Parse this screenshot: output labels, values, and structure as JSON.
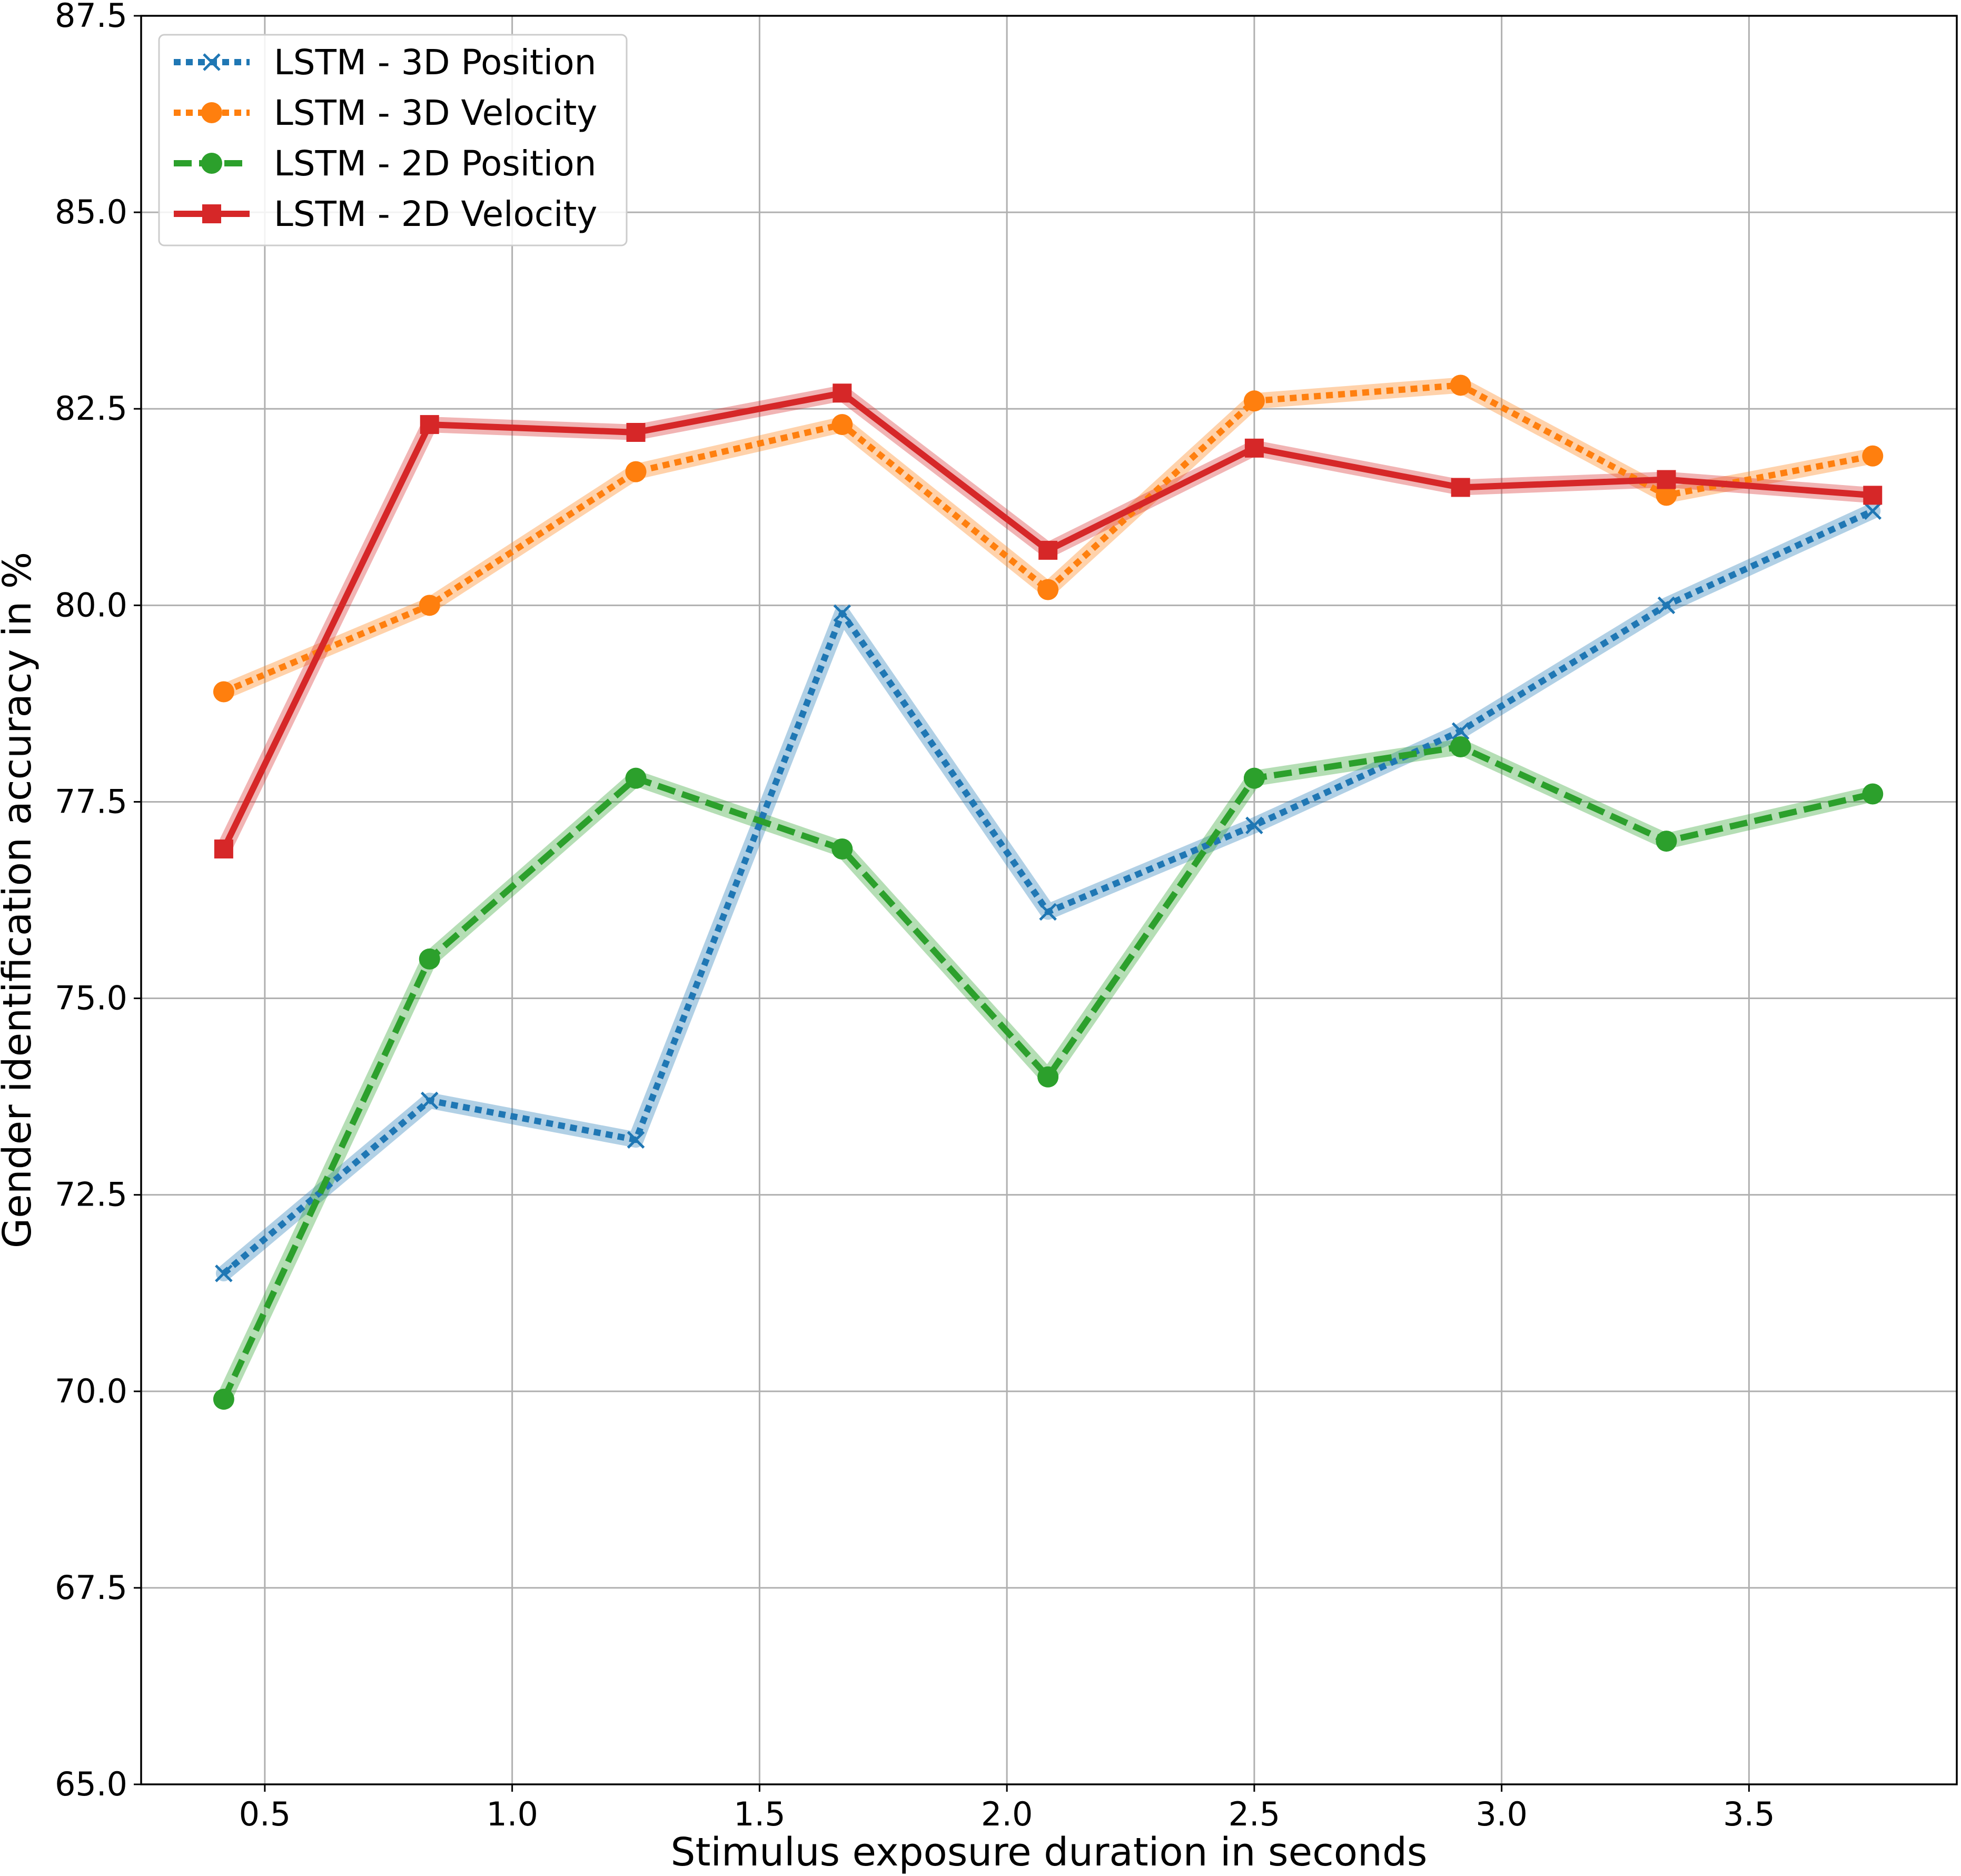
{
  "chart_data": {
    "type": "line",
    "title": "",
    "xlabel": "Stimulus exposure duration in seconds",
    "ylabel": "Gender identification accuracy in %",
    "xlim": [
      0.25,
      3.92
    ],
    "ylim": [
      65.0,
      87.5
    ],
    "xticks": [
      "0.5",
      "1.0",
      "1.5",
      "2.0",
      "2.5",
      "3.0",
      "3.5"
    ],
    "yticks": [
      "65.0",
      "67.5",
      "70.0",
      "72.5",
      "75.0",
      "77.5",
      "80.0",
      "82.5",
      "85.0",
      "87.5"
    ],
    "grid": true,
    "legend_position": "top-left",
    "x": [
      0.417,
      0.833,
      1.25,
      1.667,
      2.083,
      2.5,
      2.917,
      3.333,
      3.75
    ],
    "series": [
      {
        "name": "LSTM - 3D Position",
        "color": "#1f77b4",
        "linestyle": "dotted",
        "marker": "x",
        "values": [
          71.5,
          73.7,
          73.2,
          79.9,
          76.1,
          77.2,
          78.4,
          80.0,
          81.2
        ]
      },
      {
        "name": "LSTM - 3D Velocity",
        "color": "#ff7f0e",
        "linestyle": "dotted",
        "marker": "circle",
        "values": [
          78.9,
          80.0,
          81.7,
          82.3,
          80.2,
          82.6,
          82.8,
          81.4,
          81.9
        ]
      },
      {
        "name": "LSTM - 2D Position",
        "color": "#2ca02c",
        "linestyle": "dashed",
        "marker": "circle",
        "values": [
          69.9,
          75.5,
          77.8,
          76.9,
          74.0,
          77.8,
          78.2,
          77.0,
          77.6
        ]
      },
      {
        "name": "LSTM - 2D Velocity",
        "color": "#d62728",
        "linestyle": "solid",
        "marker": "square",
        "values": [
          76.9,
          82.3,
          82.2,
          82.7,
          80.7,
          82.0,
          81.5,
          81.6,
          81.4
        ]
      }
    ]
  }
}
